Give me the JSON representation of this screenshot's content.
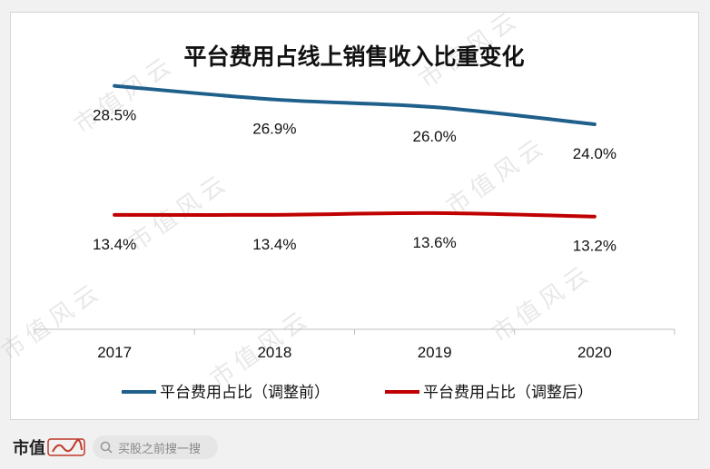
{
  "chart_data": {
    "type": "line",
    "title": "平台费用占线上销售收入比重变化",
    "categories": [
      "2017",
      "2018",
      "2019",
      "2020"
    ],
    "series": [
      {
        "name": "平台费用占比（调整前）",
        "values": [
          28.5,
          26.9,
          26.0,
          24.0
        ],
        "labels": [
          "28.5%",
          "26.9%",
          "26.0%",
          "24.0%"
        ],
        "color": "#1f5f8b"
      },
      {
        "name": "平台费用占比（调整后）",
        "values": [
          13.4,
          13.4,
          13.6,
          13.2
        ],
        "labels": [
          "13.4%",
          "13.4%",
          "13.6%",
          "13.2%"
        ],
        "color": "#c00000"
      }
    ],
    "legend_position": "bottom",
    "grid": false
  },
  "watermark": "市值风云",
  "footer": {
    "brand": "市值",
    "search_placeholder": "买股之前搜一搜"
  }
}
